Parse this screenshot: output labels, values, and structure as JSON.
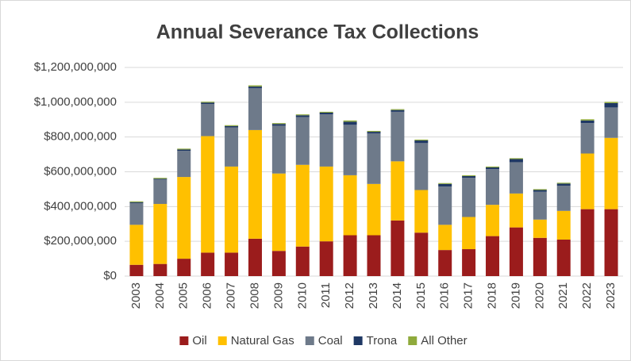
{
  "chart_data": {
    "type": "stacked_bar",
    "title": "Annual Severance Tax Collections",
    "categories": [
      "2003",
      "2004",
      "2005",
      "2006",
      "2007",
      "2008",
      "2009",
      "2010",
      "2011",
      "2012",
      "2013",
      "2014",
      "2015",
      "2016",
      "2017",
      "2018",
      "2019",
      "2020",
      "2021",
      "2022",
      "2023"
    ],
    "series": [
      {
        "name": "Oil",
        "color": "#9b1c1c",
        "values": [
          65000000,
          70000000,
          100000000,
          135000000,
          135000000,
          215000000,
          145000000,
          170000000,
          200000000,
          235000000,
          235000000,
          320000000,
          250000000,
          150000000,
          155000000,
          230000000,
          280000000,
          220000000,
          210000000,
          385000000,
          385000000
        ]
      },
      {
        "name": "Natural Gas",
        "color": "#ffc000",
        "values": [
          230000000,
          345000000,
          470000000,
          670000000,
          495000000,
          625000000,
          445000000,
          470000000,
          430000000,
          345000000,
          295000000,
          340000000,
          245000000,
          145000000,
          185000000,
          180000000,
          195000000,
          105000000,
          165000000,
          320000000,
          410000000
        ]
      },
      {
        "name": "Coal",
        "color": "#6e7a8a",
        "values": [
          125000000,
          140000000,
          150000000,
          185000000,
          225000000,
          240000000,
          275000000,
          275000000,
          300000000,
          290000000,
          290000000,
          285000000,
          270000000,
          220000000,
          225000000,
          205000000,
          180000000,
          160000000,
          145000000,
          175000000,
          175000000
        ]
      },
      {
        "name": "Trona",
        "color": "#1f3864",
        "values": [
          5000000,
          5000000,
          8000000,
          8000000,
          8000000,
          10000000,
          10000000,
          10000000,
          10000000,
          18000000,
          10000000,
          10000000,
          15000000,
          15000000,
          10000000,
          10000000,
          18000000,
          10000000,
          12000000,
          15000000,
          25000000
        ]
      },
      {
        "name": "All Other",
        "color": "#8faa3c",
        "values": [
          5000000,
          5000000,
          5000000,
          5000000,
          5000000,
          7000000,
          5000000,
          5000000,
          5000000,
          7000000,
          5000000,
          5000000,
          5000000,
          5000000,
          5000000,
          5000000,
          5000000,
          5000000,
          5000000,
          7000000,
          7000000
        ]
      }
    ],
    "ylim": [
      0,
      1200000000
    ],
    "yticks": [
      {
        "value": 0,
        "label": "$0"
      },
      {
        "value": 200000000,
        "label": "$200,000,000"
      },
      {
        "value": 400000000,
        "label": "$400,000,000"
      },
      {
        "value": 600000000,
        "label": "$600,000,000"
      },
      {
        "value": 800000000,
        "label": "$800,000,000"
      },
      {
        "value": 1000000000,
        "label": "$1,000,000,000"
      },
      {
        "value": 1200000000,
        "label": "$1,200,000,000"
      }
    ],
    "grid": true
  }
}
